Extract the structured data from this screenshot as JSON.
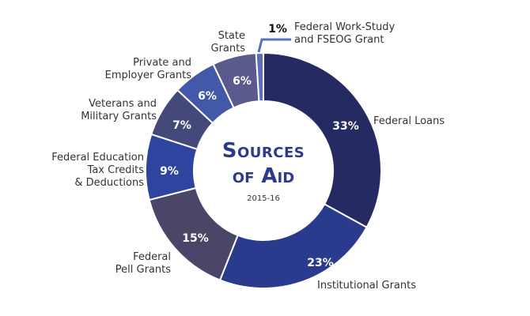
{
  "chart_data": {
    "type": "pie",
    "subtype": "donut",
    "title": "Sources of Aid",
    "subtitle": "2015-16",
    "categories": [
      "Federal Loans",
      "Institutional Grants",
      "Federal Pell Grants",
      "Federal Education Tax Credits & Deductions",
      "Veterans and Military Grants",
      "Private and Employer Grants",
      "State Grants",
      "Federal Work-Study and FSEOG Grant"
    ],
    "values": [
      33,
      23,
      15,
      9,
      7,
      6,
      6,
      1
    ],
    "colors": [
      "#252a63",
      "#2a3a8c",
      "#4a4668",
      "#2e45a0",
      "#45497a",
      "#4358a8",
      "#5a5a8c",
      "#5d6fb8"
    ],
    "unit": "%"
  },
  "labels": {
    "title_line1": "Sources",
    "title_line2": "of Aid",
    "year": "2015-16",
    "federal_loans": "Federal Loans",
    "institutional": "Institutional Grants",
    "pell": "Federal\nPell Grants",
    "tax": "Federal Education\nTax Credits\n& Deductions",
    "veterans": "Veterans and\nMilitary Grants",
    "private": "Private and\nEmployer Grants",
    "state": "State\nGrants",
    "workstudy": "Federal Work-Study\nand FSEOG Grant"
  },
  "percents": {
    "federal_loans": "33%",
    "institutional": "23%",
    "pell": "15%",
    "tax": "9%",
    "veterans": "7%",
    "private": "6%",
    "state": "6%",
    "workstudy": "1%"
  }
}
